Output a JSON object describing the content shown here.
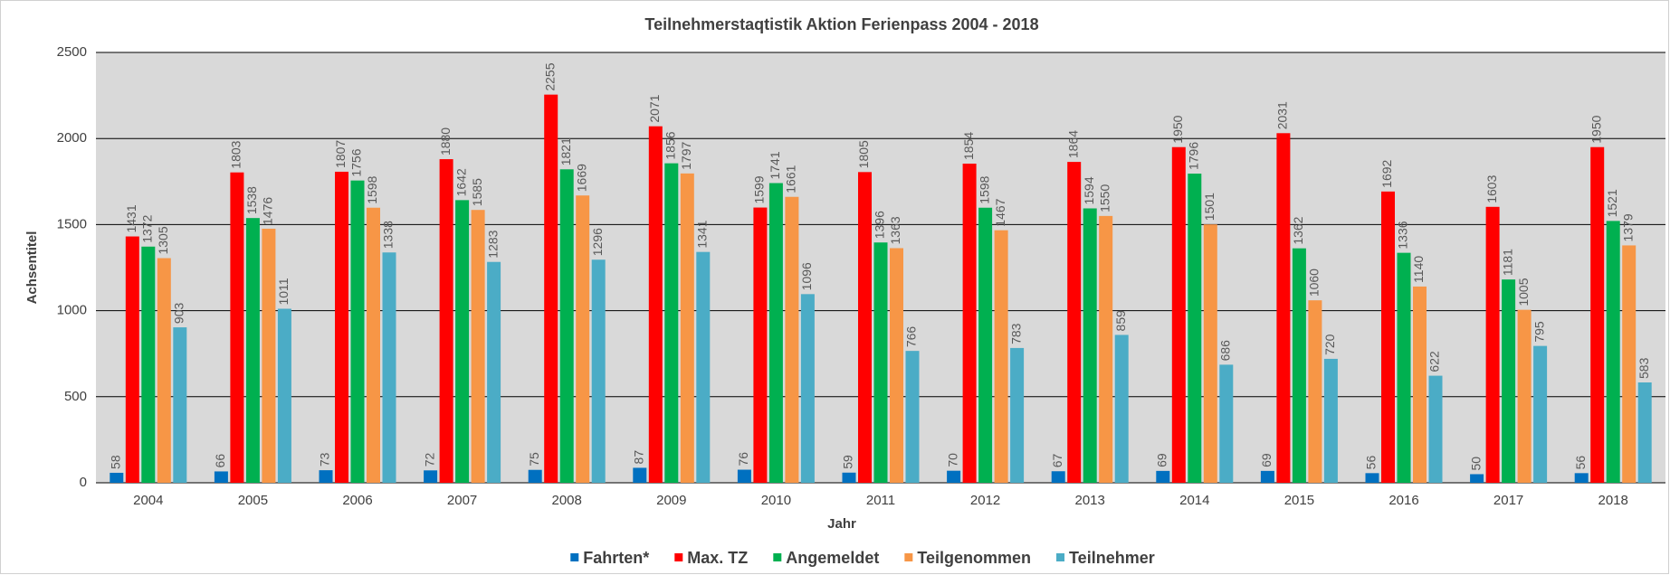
{
  "chart_data": {
    "type": "bar",
    "title": "Teilnehmerstaqtistik Aktion Ferienpass 2004 - 2018",
    "x_label": "Jahr",
    "y_label": "Achsentitel",
    "categories": [
      "2004",
      "2005",
      "2006",
      "2007",
      "2008",
      "2009",
      "2010",
      "2011",
      "2012",
      "2013",
      "2014",
      "2015",
      "2016",
      "2017",
      "2018"
    ],
    "series": [
      {
        "name": "Fahrten*",
        "color": "#0070c0",
        "values": [
          58,
          66,
          73,
          72,
          75,
          87,
          76,
          59,
          70,
          67,
          69,
          69,
          56,
          50,
          56
        ]
      },
      {
        "name": "Max. TZ",
        "color": "#ff0000",
        "values": [
          1431,
          1803,
          1807,
          1880,
          2255,
          2071,
          1599,
          1805,
          1854,
          1864,
          1950,
          2031,
          1692,
          1603,
          1950
        ]
      },
      {
        "name": "Angemeldet",
        "color": "#00b050",
        "values": [
          1372,
          1538,
          1756,
          1642,
          1821,
          1856,
          1741,
          1396,
          1598,
          1594,
          1796,
          1362,
          1336,
          1181,
          1521
        ]
      },
      {
        "name": "Teilgenommen",
        "color": "#f79646",
        "values": [
          1305,
          1476,
          1598,
          1585,
          1669,
          1797,
          1661,
          1363,
          1467,
          1550,
          1501,
          1060,
          1140,
          1005,
          1379
        ]
      },
      {
        "name": "Teilnehmer",
        "color": "#4bacc6",
        "values": [
          903,
          1011,
          1338,
          1283,
          1296,
          1341,
          1096,
          766,
          783,
          859,
          686,
          720,
          622,
          795,
          583
        ]
      }
    ],
    "ylim": [
      0,
      2500
    ],
    "yticks": [
      0,
      500,
      1000,
      1500,
      2000,
      2500
    ],
    "grid": true,
    "legend": "bottom"
  }
}
